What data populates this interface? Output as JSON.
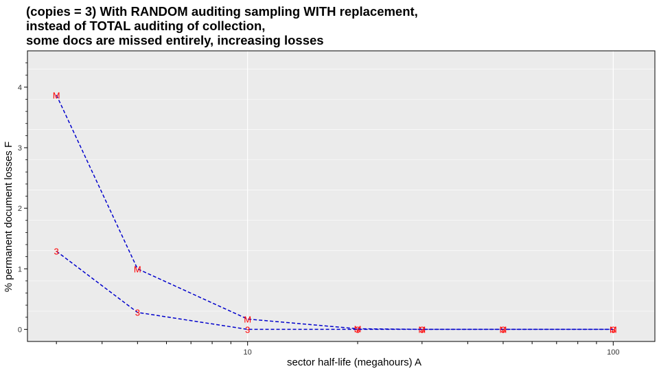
{
  "chart_data": {
    "type": "line",
    "title": [
      "(copies = 3) With RANDOM auditing sampling WITH replacement,",
      "instead of TOTAL auditing of collection,",
      "some docs are missed entirely, increasing losses"
    ],
    "xlabel": "sector half-life (megahours) A",
    "ylabel": "% permanent document losses F",
    "x_scale": "log",
    "xlim": [
      2.5,
      130
    ],
    "ylim": [
      -0.2,
      4.6
    ],
    "x_ticks": [
      {
        "value": 10,
        "label": "10"
      },
      {
        "value": 100,
        "label": "100"
      }
    ],
    "y_ticks": [
      {
        "value": 0,
        "label": "0"
      },
      {
        "value": 1,
        "label": "1"
      },
      {
        "value": 2,
        "label": "2"
      },
      {
        "value": 3,
        "label": "3"
      },
      {
        "value": 4,
        "label": "4"
      }
    ],
    "grid": true,
    "background": "#ebebeb",
    "line_color": "#0000cc",
    "label_color": "#ff0000",
    "series": [
      {
        "marker": "M",
        "x": [
          3,
          5,
          10,
          20,
          30,
          50,
          100
        ],
        "y": [
          3.87,
          1.0,
          0.17,
          0.01,
          0.0,
          0.0,
          0.0
        ]
      },
      {
        "marker": "3",
        "x": [
          3,
          5,
          10,
          20,
          30,
          50,
          100
        ],
        "y": [
          1.29,
          0.28,
          0.0,
          0.0,
          0.0,
          0.0,
          0.0
        ]
      }
    ]
  }
}
